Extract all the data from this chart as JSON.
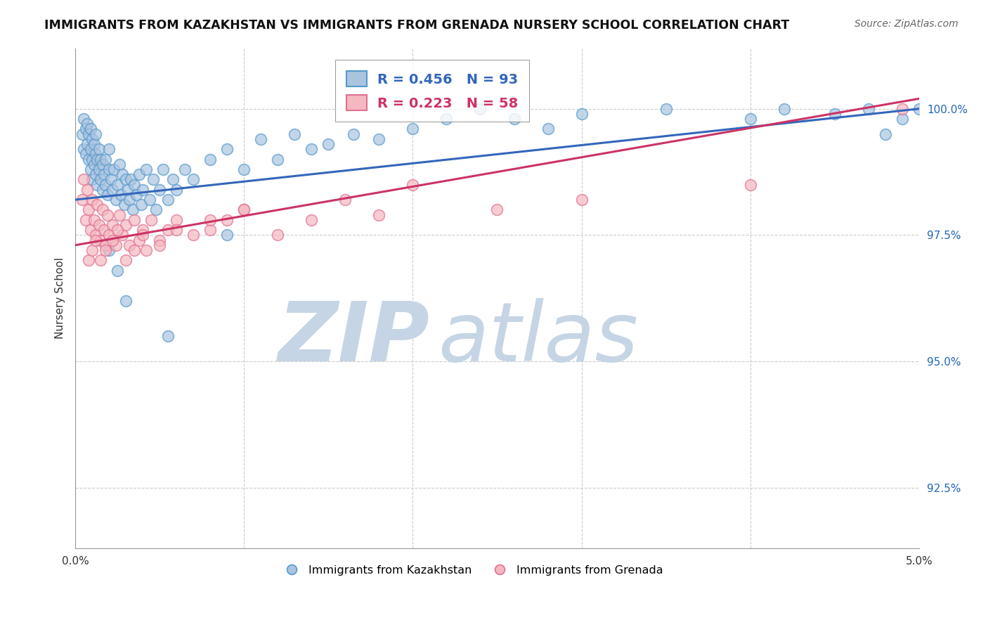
{
  "title": "IMMIGRANTS FROM KAZAKHSTAN VS IMMIGRANTS FROM GRENADA NURSERY SCHOOL CORRELATION CHART",
  "source": "Source: ZipAtlas.com",
  "ylabel": "Nursery School",
  "yticks": [
    92.5,
    95.0,
    97.5,
    100.0
  ],
  "ytick_labels": [
    "92.5%",
    "95.0%",
    "97.5%",
    "100.0%"
  ],
  "xmin": 0.0,
  "xmax": 5.0,
  "ymin": 91.3,
  "ymax": 101.2,
  "legend_blue_label": "R = 0.456   N = 93",
  "legend_pink_label": "R = 0.223   N = 58",
  "blue_face_color": "#aac4e0",
  "blue_edge_color": "#5599cc",
  "pink_face_color": "#f5b8c0",
  "pink_edge_color": "#e07090",
  "blue_line_color": "#3366bb",
  "pink_line_color": "#cc3366",
  "watermark_zip": "ZIP",
  "watermark_atlas": "atlas",
  "watermark_color_zip": "#c5d5e5",
  "watermark_color_atlas": "#c5d5e5",
  "background_color": "#ffffff",
  "grid_color": "#cccccc",
  "kaz_x": [
    0.04,
    0.05,
    0.05,
    0.06,
    0.06,
    0.07,
    0.07,
    0.08,
    0.08,
    0.09,
    0.09,
    0.09,
    0.1,
    0.1,
    0.1,
    0.11,
    0.11,
    0.12,
    0.12,
    0.12,
    0.13,
    0.13,
    0.14,
    0.14,
    0.15,
    0.15,
    0.16,
    0.16,
    0.17,
    0.18,
    0.18,
    0.19,
    0.2,
    0.2,
    0.21,
    0.22,
    0.23,
    0.24,
    0.25,
    0.26,
    0.27,
    0.28,
    0.29,
    0.3,
    0.31,
    0.32,
    0.33,
    0.34,
    0.35,
    0.36,
    0.38,
    0.39,
    0.4,
    0.42,
    0.44,
    0.46,
    0.48,
    0.5,
    0.52,
    0.55,
    0.58,
    0.6,
    0.65,
    0.7,
    0.8,
    0.9,
    1.0,
    1.1,
    1.2,
    1.3,
    1.4,
    1.5,
    1.65,
    1.8,
    2.0,
    2.2,
    2.4,
    2.6,
    2.8,
    3.0,
    3.5,
    4.0,
    4.2,
    4.5,
    4.7,
    4.8,
    4.9,
    5.0,
    0.2,
    0.25,
    0.3,
    0.55,
    0.9
  ],
  "kaz_y": [
    99.5,
    99.8,
    99.2,
    99.6,
    99.1,
    99.3,
    99.7,
    99.0,
    99.5,
    98.8,
    99.2,
    99.6,
    98.6,
    99.0,
    99.4,
    98.9,
    99.3,
    98.7,
    99.1,
    99.5,
    98.5,
    99.0,
    98.8,
    99.2,
    98.6,
    99.0,
    98.4,
    98.9,
    98.7,
    98.5,
    99.0,
    98.3,
    98.8,
    99.2,
    98.6,
    98.4,
    98.8,
    98.2,
    98.5,
    98.9,
    98.3,
    98.7,
    98.1,
    98.6,
    98.4,
    98.2,
    98.6,
    98.0,
    98.5,
    98.3,
    98.7,
    98.1,
    98.4,
    98.8,
    98.2,
    98.6,
    98.0,
    98.4,
    98.8,
    98.2,
    98.6,
    98.4,
    98.8,
    98.6,
    99.0,
    99.2,
    98.8,
    99.4,
    99.0,
    99.5,
    99.2,
    99.3,
    99.5,
    99.4,
    99.6,
    99.8,
    100.0,
    99.8,
    99.6,
    99.9,
    100.0,
    99.8,
    100.0,
    99.9,
    100.0,
    99.5,
    99.8,
    100.0,
    97.2,
    96.8,
    96.2,
    95.5,
    97.5
  ],
  "gren_x": [
    0.04,
    0.05,
    0.06,
    0.07,
    0.08,
    0.09,
    0.1,
    0.11,
    0.12,
    0.13,
    0.14,
    0.15,
    0.16,
    0.17,
    0.18,
    0.19,
    0.2,
    0.22,
    0.24,
    0.26,
    0.28,
    0.3,
    0.32,
    0.35,
    0.38,
    0.4,
    0.42,
    0.45,
    0.5,
    0.55,
    0.6,
    0.7,
    0.8,
    0.9,
    1.0,
    1.2,
    1.4,
    1.6,
    1.8,
    2.0,
    2.5,
    3.0,
    4.0,
    4.9,
    0.08,
    0.1,
    0.12,
    0.15,
    0.18,
    0.22,
    0.25,
    0.3,
    0.35,
    0.4,
    0.5,
    0.6,
    0.8,
    1.0
  ],
  "gren_y": [
    98.2,
    98.6,
    97.8,
    98.4,
    98.0,
    97.6,
    98.2,
    97.8,
    97.5,
    98.1,
    97.7,
    97.4,
    98.0,
    97.6,
    97.3,
    97.9,
    97.5,
    97.7,
    97.3,
    97.9,
    97.5,
    97.7,
    97.3,
    97.8,
    97.4,
    97.6,
    97.2,
    97.8,
    97.4,
    97.6,
    97.8,
    97.5,
    97.6,
    97.8,
    98.0,
    97.5,
    97.8,
    98.2,
    97.9,
    98.5,
    98.0,
    98.2,
    98.5,
    100.0,
    97.0,
    97.2,
    97.4,
    97.0,
    97.2,
    97.4,
    97.6,
    97.0,
    97.2,
    97.5,
    97.3,
    97.6,
    97.8,
    98.0
  ],
  "kaz_line_x0": 0.0,
  "kaz_line_y0": 98.2,
  "kaz_line_x1": 5.0,
  "kaz_line_y1": 100.0,
  "gren_line_x0": 0.0,
  "gren_line_y0": 97.3,
  "gren_line_x1": 5.0,
  "gren_line_y1": 100.2
}
